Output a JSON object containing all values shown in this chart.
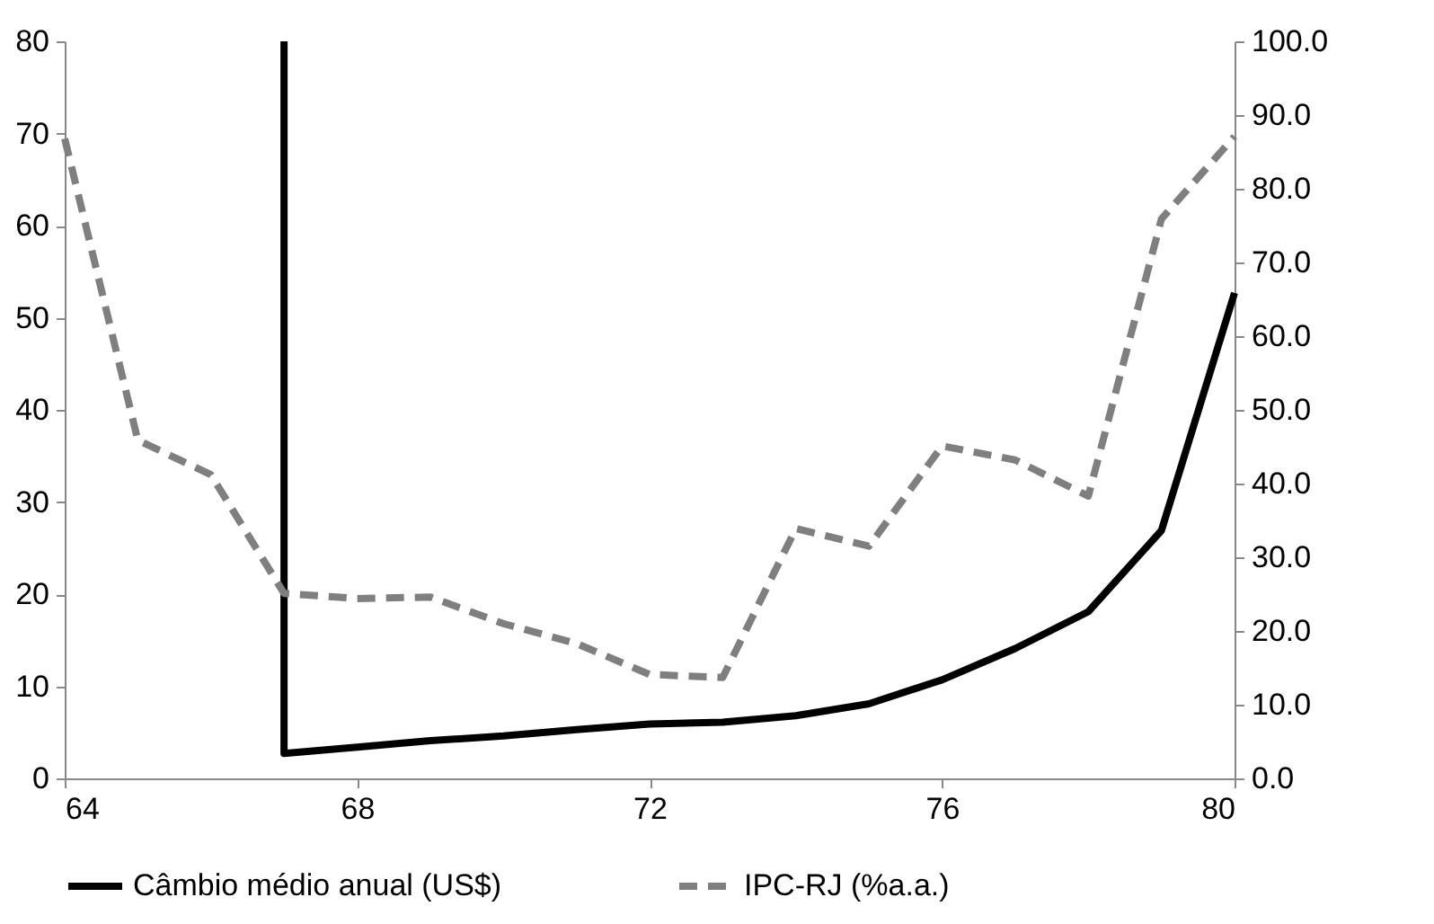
{
  "chart_data": {
    "type": "line",
    "xlim": [
      64,
      80
    ],
    "xticks": [
      64,
      68,
      72,
      76,
      80
    ],
    "ylim": [
      0,
      80
    ],
    "yticks": [
      0,
      10,
      20,
      30,
      40,
      50,
      60,
      70,
      80
    ],
    "y2lim": [
      0,
      100
    ],
    "y2ticks": [
      {
        "value": 0,
        "label": "0.0"
      },
      {
        "value": 10,
        "label": "10.0"
      },
      {
        "value": 20,
        "label": "20.0"
      },
      {
        "value": 30,
        "label": "30.0"
      },
      {
        "value": 40,
        "label": "40.0"
      },
      {
        "value": 50,
        "label": "50.0"
      },
      {
        "value": 60,
        "label": "60.0"
      },
      {
        "value": 70,
        "label": "70.0"
      },
      {
        "value": 80,
        "label": "80.0"
      },
      {
        "value": 90,
        "label": "90.0"
      },
      {
        "value": 100,
        "label": "100.0"
      }
    ],
    "grid": false,
    "legend": "bottom",
    "marker": "none",
    "series": [
      {
        "name": "Câmbio médio anual (US$)",
        "color": "#000000",
        "line_style": "solid",
        "x": [
          67,
          67,
          68,
          69,
          70,
          71,
          72,
          73,
          74,
          75,
          76,
          77,
          78,
          79,
          80
        ],
        "values": [
          80,
          2.7,
          3.4,
          4.1,
          4.6,
          5.3,
          5.9,
          6.1,
          6.8,
          8.1,
          10.7,
          14.1,
          18.1,
          26.9,
          52.7
        ]
      },
      {
        "name": "IPC-RJ (%a.a.)",
        "color": "#7f7f7f",
        "line_style": "dashed",
        "axis": "y2",
        "x": [
          64,
          65,
          66,
          67,
          68,
          69,
          70,
          71,
          72,
          73,
          74,
          75,
          76,
          77,
          78,
          79,
          80
        ],
        "values": [
          86.8,
          45.9,
          41.2,
          25.1,
          24.4,
          24.6,
          21.0,
          18.3,
          14.1,
          13.7,
          33.9,
          31.5,
          45.1,
          43.2,
          38.3,
          75.9,
          87.1
        ]
      }
    ]
  }
}
